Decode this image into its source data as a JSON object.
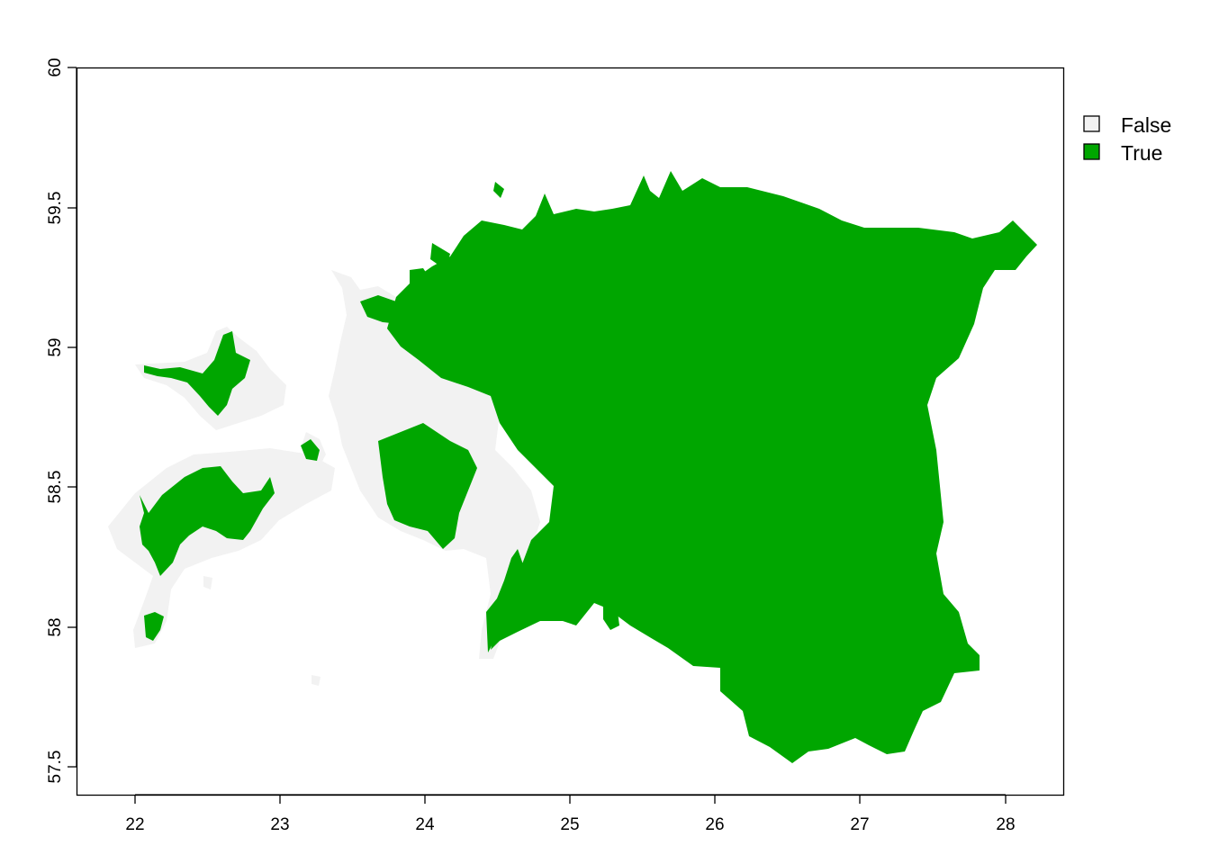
{
  "map": {
    "xaxis": {
      "ticks": [
        "22",
        "23",
        "24",
        "25",
        "26",
        "27",
        "28"
      ]
    },
    "yaxis": {
      "ticks": [
        "57.5",
        "58",
        "58.5",
        "59",
        "59.5",
        "60"
      ]
    },
    "legend": {
      "position": "top-right",
      "items": [
        {
          "label": "False",
          "color": "#f2f2f2"
        },
        {
          "label": "True",
          "color": "#00a600"
        }
      ]
    },
    "colors": {
      "false_area": "#f2f2f2",
      "true_area": "#00a600",
      "frame": "#000000"
    }
  }
}
